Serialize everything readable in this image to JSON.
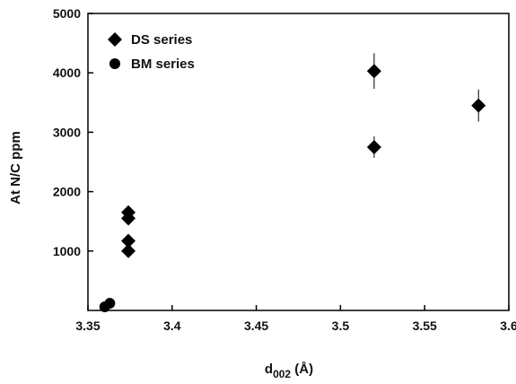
{
  "chart_data": {
    "type": "scatter",
    "title": "",
    "xlabel_main": "d",
    "xlabel_sub": "002",
    "xlabel_unit": " (Å)",
    "ylabel": "At N/C ppm",
    "xlim": [
      3.35,
      3.6
    ],
    "ylim": [
      0,
      5000
    ],
    "xticks": [
      "3.35",
      "3.4",
      "3.45",
      "3.5",
      "3.55",
      "3.6"
    ],
    "yticks": [
      "1000",
      "2000",
      "3000",
      "4000",
      "5000"
    ],
    "xtick_values": [
      3.35,
      3.4,
      3.45,
      3.5,
      3.55,
      3.6
    ],
    "ytick_values": [
      1000,
      2000,
      3000,
      4000,
      5000
    ],
    "grid": false,
    "legend_position": "top-left",
    "series": [
      {
        "name": "DS series",
        "marker": "diamond",
        "color": "#000000",
        "points": [
          {
            "x": 3.374,
            "y": 1650,
            "err": 0
          },
          {
            "x": 3.374,
            "y": 1550,
            "err": 0
          },
          {
            "x": 3.374,
            "y": 1170,
            "err": 0
          },
          {
            "x": 3.374,
            "y": 1000,
            "err": 0
          },
          {
            "x": 3.52,
            "y": 4030,
            "err": 300
          },
          {
            "x": 3.52,
            "y": 2750,
            "err": 180
          },
          {
            "x": 3.582,
            "y": 3450,
            "err": 270
          }
        ]
      },
      {
        "name": "BM series",
        "marker": "circle",
        "color": "#000000",
        "points": [
          {
            "x": 3.36,
            "y": 60,
            "err": 0
          },
          {
            "x": 3.363,
            "y": 120,
            "err": 0
          }
        ]
      }
    ]
  }
}
